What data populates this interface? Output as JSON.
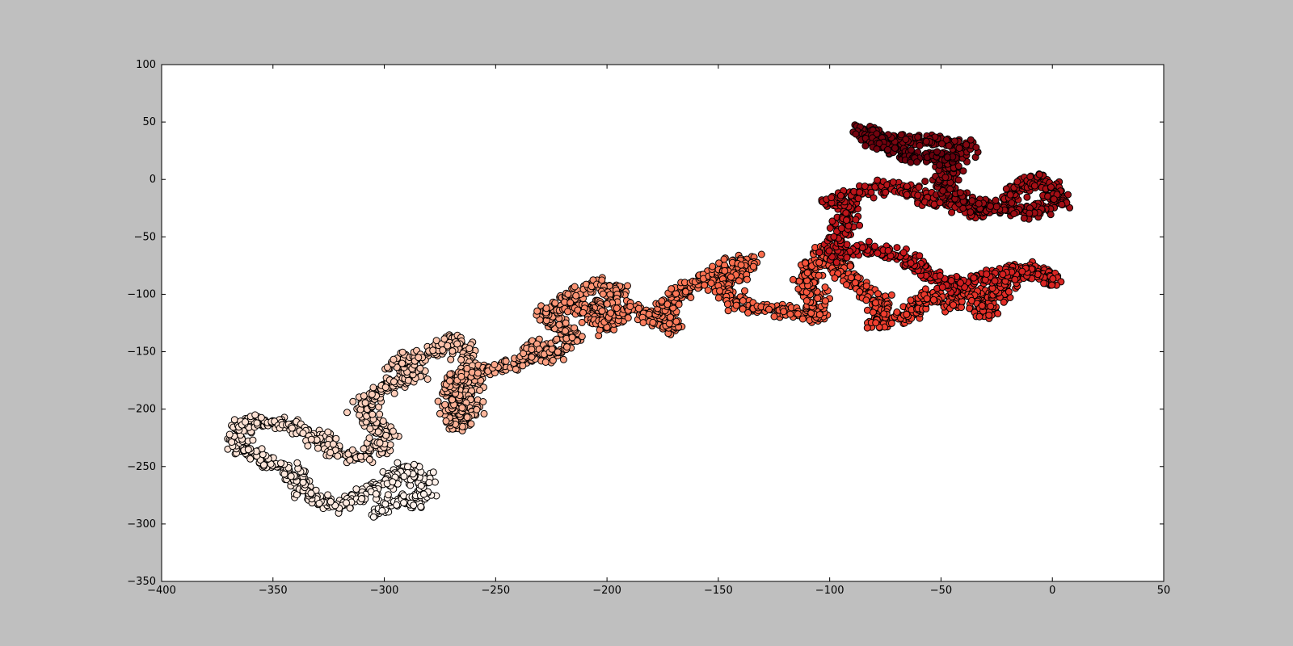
{
  "chart_data": {
    "type": "scatter",
    "title": "",
    "xlabel": "",
    "ylabel": "",
    "xlim": [
      -400,
      50
    ],
    "ylim": [
      -350,
      100
    ],
    "x_ticks": [
      -400,
      -350,
      -300,
      -250,
      -200,
      -150,
      -100,
      -50,
      0,
      50
    ],
    "y_ticks": [
      -350,
      -300,
      -250,
      -200,
      -150,
      -100,
      -50,
      0,
      50,
      100
    ],
    "x_tick_labels": [
      "−400",
      "−350",
      "−300",
      "−250",
      "−200",
      "−150",
      "−100",
      "−50",
      "0",
      "50"
    ],
    "y_tick_labels": [
      "−350",
      "−300",
      "−250",
      "−200",
      "−150",
      "−100",
      "−50",
      "0",
      "50",
      "100"
    ],
    "grid": false,
    "legend": "none",
    "colormap": "Reds",
    "color_encoding": "point order (light to dark)",
    "background_color": "#bfbfbf",
    "plot_color": "#ffffff",
    "walk_waypoints": [
      [
        -305,
        -292
      ],
      [
        -295,
        -280
      ],
      [
        -285,
        -280
      ],
      [
        -282,
        -262
      ],
      [
        -290,
        -250
      ],
      [
        -300,
        -265
      ],
      [
        -320,
        -285
      ],
      [
        -335,
        -275
      ],
      [
        -340,
        -255
      ],
      [
        -355,
        -245
      ],
      [
        -368,
        -230
      ],
      [
        -362,
        -210
      ],
      [
        -345,
        -212
      ],
      [
        -330,
        -225
      ],
      [
        -320,
        -240
      ],
      [
        -305,
        -240
      ],
      [
        -300,
        -220
      ],
      [
        -310,
        -200
      ],
      [
        -300,
        -180
      ],
      [
        -285,
        -170
      ],
      [
        -295,
        -160
      ],
      [
        -278,
        -150
      ],
      [
        -268,
        -140
      ],
      [
        -262,
        -155
      ],
      [
        -262,
        -200
      ],
      [
        -268,
        -215
      ],
      [
        -270,
        -175
      ],
      [
        -255,
        -165
      ],
      [
        -240,
        -160
      ],
      [
        -230,
        -145
      ],
      [
        -225,
        -155
      ],
      [
        -215,
        -135
      ],
      [
        -228,
        -120
      ],
      [
        -215,
        -100
      ],
      [
        -205,
        -90
      ],
      [
        -195,
        -95
      ],
      [
        -205,
        -115
      ],
      [
        -215,
        -110
      ],
      [
        -200,
        -130
      ],
      [
        -190,
        -110
      ],
      [
        -180,
        -120
      ],
      [
        -170,
        -130
      ],
      [
        -175,
        -110
      ],
      [
        -165,
        -95
      ],
      [
        -155,
        -85
      ],
      [
        -145,
        -75
      ],
      [
        -135,
        -70
      ],
      [
        -150,
        -95
      ],
      [
        -140,
        -110
      ],
      [
        -120,
        -115
      ],
      [
        -105,
        -120
      ],
      [
        -110,
        -85
      ],
      [
        -100,
        -60
      ],
      [
        -95,
        -80
      ],
      [
        -85,
        -95
      ],
      [
        -75,
        -110
      ],
      [
        -80,
        -125
      ],
      [
        -65,
        -120
      ],
      [
        -55,
        -100
      ],
      [
        -45,
        -110
      ],
      [
        -35,
        -95
      ],
      [
        -30,
        -118
      ],
      [
        -20,
        -90
      ],
      [
        -10,
        -75
      ],
      [
        0,
        -90
      ],
      [
        -15,
        -80
      ],
      [
        -30,
        -85
      ],
      [
        -45,
        -95
      ],
      [
        -60,
        -75
      ],
      [
        -70,
        -65
      ],
      [
        -85,
        -60
      ],
      [
        -98,
        -65
      ],
      [
        -95,
        -45
      ],
      [
        -90,
        -25
      ],
      [
        -100,
        -20
      ],
      [
        -85,
        -10
      ],
      [
        -70,
        -5
      ],
      [
        -60,
        -15
      ],
      [
        -45,
        -20
      ],
      [
        -35,
        -30
      ],
      [
        -20,
        -20
      ],
      [
        -15,
        -5
      ],
      [
        -5,
        0
      ],
      [
        5,
        -20
      ],
      [
        -10,
        -28
      ],
      [
        -25,
        -25
      ],
      [
        -40,
        -20
      ],
      [
        -50,
        -5
      ],
      [
        -45,
        15
      ],
      [
        -38,
        28
      ],
      [
        -55,
        35
      ],
      [
        -70,
        32
      ],
      [
        -85,
        45
      ],
      [
        -78,
        30
      ],
      [
        -60,
        18
      ],
      [
        -45,
        20
      ]
    ]
  }
}
